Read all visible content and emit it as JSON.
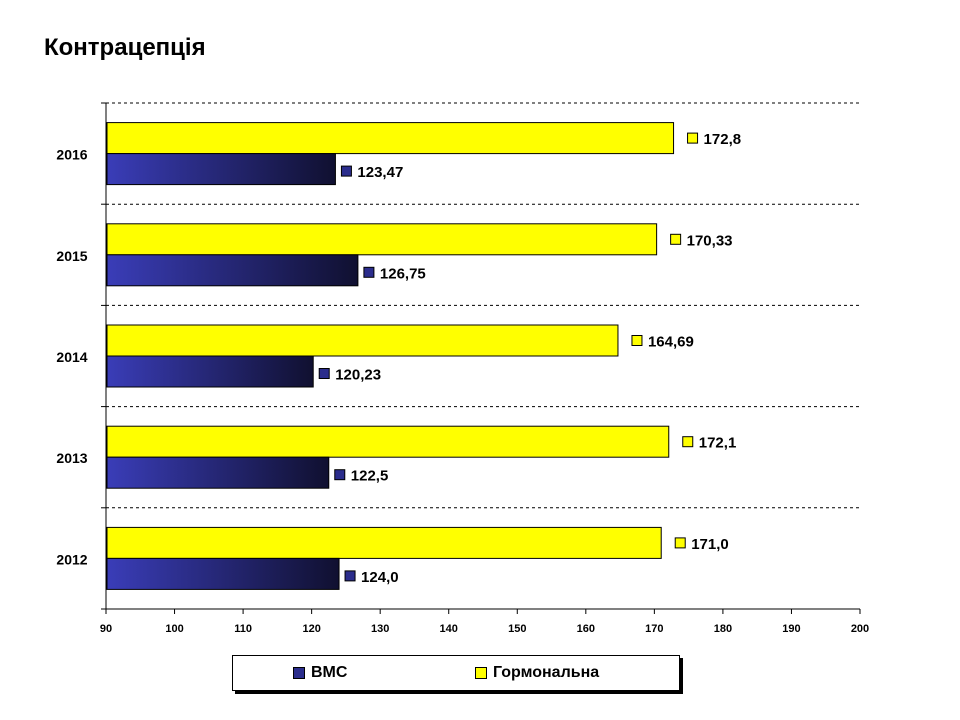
{
  "title": "Контрацепція",
  "colors": {
    "ВМС": "#2b2d8c",
    "Гормональна": "#ffff00"
  },
  "chart_data": {
    "type": "bar",
    "orientation": "horizontal",
    "title": "Контрацепція",
    "categories": [
      "2012",
      "2013",
      "2014",
      "2015",
      "2016"
    ],
    "series": [
      {
        "name": "ВМС",
        "values": [
          124.0,
          122.5,
          120.23,
          126.75,
          123.47
        ],
        "labels": [
          "124,0",
          "122,5",
          "120,23",
          "126,75",
          "123,47"
        ]
      },
      {
        "name": "Гормональна",
        "values": [
          171.0,
          172.1,
          164.69,
          170.33,
          172.8
        ],
        "labels": [
          "171,0",
          "172,1",
          "164,69",
          "170,33",
          "172,8"
        ]
      }
    ],
    "xlim": [
      90,
      200
    ],
    "xticks": [
      "90",
      "100",
      "110",
      "120",
      "130",
      "140",
      "150",
      "160",
      "170",
      "180",
      "190",
      "200"
    ],
    "grid": "horizontal dashed",
    "legend_position": "bottom"
  }
}
